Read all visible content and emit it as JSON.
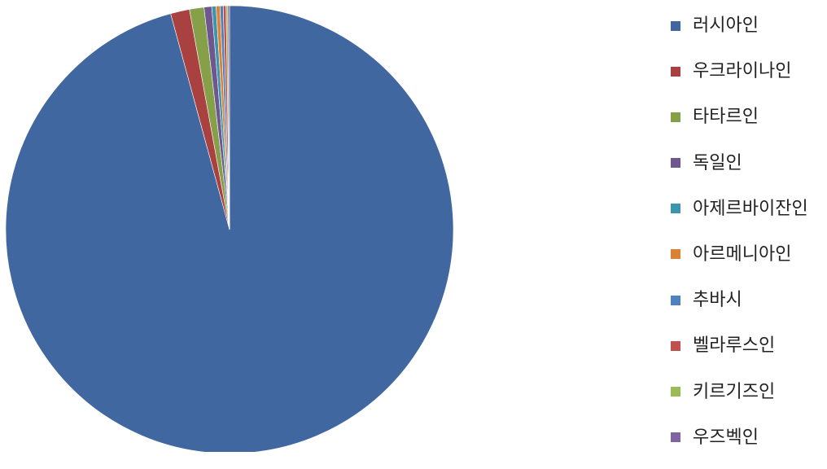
{
  "chart_data": {
    "type": "pie",
    "title": "",
    "start_angle_deg": 0,
    "direction": "clockwise",
    "legend_position": "right",
    "slices": [
      {
        "label": "러시아인",
        "value": 95.76,
        "color": "#4167A0"
      },
      {
        "label": "우크라이나인",
        "value": 1.37,
        "color": "#A8413F"
      },
      {
        "label": "타타르인",
        "value": 1.05,
        "color": "#86A04A"
      },
      {
        "label": "독일인",
        "value": 0.55,
        "color": "#6E568F"
      },
      {
        "label": "아제르바이잔인",
        "value": 0.31,
        "color": "#3E94AA"
      },
      {
        "label": "아르메니아인",
        "value": 0.28,
        "color": "#DB8234"
      },
      {
        "label": "추바시",
        "value": 0.23,
        "color": "#4F81BD"
      },
      {
        "label": "벨라루스인",
        "value": 0.2,
        "color": "#C0504D"
      },
      {
        "label": "키르기즈인",
        "value": 0.13,
        "color": "#9BBB59"
      },
      {
        "label": "우즈벡인",
        "value": 0.12,
        "color": "#8064A2"
      }
    ]
  }
}
